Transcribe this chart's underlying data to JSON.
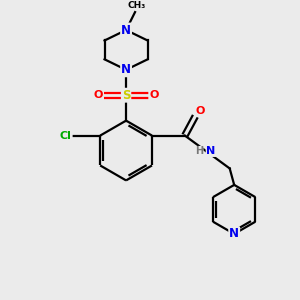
{
  "background_color": "#ebebeb",
  "bond_color": "#000000",
  "atom_colors": {
    "N": "#0000ee",
    "O": "#ff0000",
    "S": "#cccc00",
    "Cl": "#00aa00",
    "C": "#000000",
    "H": "#777777"
  },
  "figsize": [
    3.0,
    3.0
  ],
  "dpi": 100
}
